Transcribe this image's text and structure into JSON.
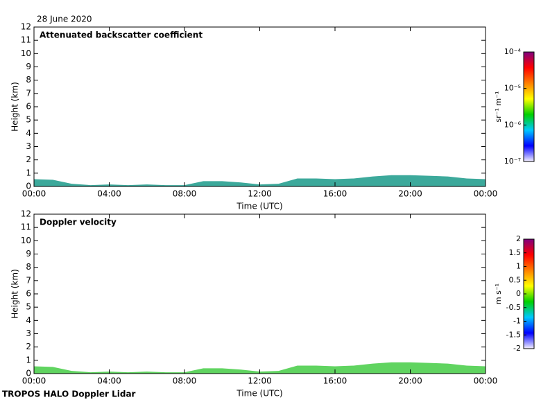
{
  "date": "28 June 2020",
  "footer": "TROPOS HALO Doppler Lidar",
  "chart_data": [
    {
      "type": "area",
      "title": "Attenuated backscatter coefficient",
      "xlabel": "Time (UTC)",
      "ylabel": "Height (km)",
      "x": [
        0,
        1,
        2,
        3,
        4,
        5,
        6,
        7,
        8,
        9,
        10,
        11,
        12,
        13,
        14,
        15,
        16,
        17,
        18,
        19,
        20,
        21,
        22,
        23,
        24
      ],
      "series": [
        {
          "color": "#1a9a8a",
          "values": [
            0.55,
            0.5,
            0.2,
            0.1,
            0.15,
            0.1,
            0.15,
            0.1,
            0.1,
            0.4,
            0.4,
            0.3,
            0.15,
            0.2,
            0.6,
            0.6,
            0.55,
            0.6,
            0.75,
            0.85,
            0.85,
            0.8,
            0.75,
            0.6,
            0.55
          ]
        }
      ],
      "xlim": [
        0,
        24
      ],
      "ylim": [
        0,
        12
      ],
      "xticks": [
        {
          "value": 0,
          "label": "00:00"
        },
        {
          "value": 4,
          "label": "04:00"
        },
        {
          "value": 8,
          "label": "08:00"
        },
        {
          "value": 12,
          "label": "12:00"
        },
        {
          "value": 16,
          "label": "16:00"
        },
        {
          "value": 20,
          "label": "20:00"
        },
        {
          "value": 24,
          "label": "00:00"
        }
      ],
      "yticks": [
        0,
        1,
        2,
        3,
        4,
        5,
        6,
        7,
        8,
        9,
        10,
        11,
        12
      ],
      "colorbar": {
        "label": "sr⁻¹ m⁻¹",
        "log": true,
        "lim": [
          1e-07,
          0.0001
        ],
        "ticks": [
          {
            "value": 1e-07,
            "label": "10⁻⁷"
          },
          {
            "value": 1e-06,
            "label": "10⁻⁶"
          },
          {
            "value": 1e-05,
            "label": "10⁻⁵"
          },
          {
            "value": 0.0001,
            "label": "10⁻⁴"
          }
        ],
        "colormap": [
          "#f4f0ff",
          "#0000ff",
          "#00c8ff",
          "#00d000",
          "#ffff00",
          "#ff8000",
          "#ff0000",
          "#800080"
        ]
      }
    },
    {
      "type": "area",
      "title": "Doppler velocity",
      "xlabel": "Time (UTC)",
      "ylabel": "Height (km)",
      "x": [
        0,
        1,
        2,
        3,
        4,
        5,
        6,
        7,
        8,
        9,
        10,
        11,
        12,
        13,
        14,
        15,
        16,
        17,
        18,
        19,
        20,
        21,
        22,
        23,
        24
      ],
      "series": [
        {
          "color": "#44cc44",
          "values": [
            0.55,
            0.5,
            0.2,
            0.1,
            0.15,
            0.1,
            0.15,
            0.1,
            0.1,
            0.4,
            0.4,
            0.3,
            0.15,
            0.2,
            0.6,
            0.6,
            0.55,
            0.6,
            0.75,
            0.85,
            0.85,
            0.8,
            0.75,
            0.6,
            0.55
          ]
        }
      ],
      "xlim": [
        0,
        24
      ],
      "ylim": [
        0,
        12
      ],
      "xticks": [
        {
          "value": 0,
          "label": "00:00"
        },
        {
          "value": 4,
          "label": "04:00"
        },
        {
          "value": 8,
          "label": "08:00"
        },
        {
          "value": 12,
          "label": "12:00"
        },
        {
          "value": 16,
          "label": "16:00"
        },
        {
          "value": 20,
          "label": "20:00"
        },
        {
          "value": 24,
          "label": "00:00"
        }
      ],
      "yticks": [
        0,
        1,
        2,
        3,
        4,
        5,
        6,
        7,
        8,
        9,
        10,
        11,
        12
      ],
      "colorbar": {
        "label": "m s⁻¹",
        "log": false,
        "lim": [
          -2,
          2
        ],
        "ticks": [
          -2,
          -1.5,
          -1,
          -0.5,
          0,
          0.5,
          1,
          1.5,
          2
        ],
        "colormap": [
          "#f4f0ff",
          "#0000ff",
          "#00c8ff",
          "#00d000",
          "#ffff00",
          "#ff8000",
          "#ff0000",
          "#800080"
        ]
      }
    }
  ]
}
